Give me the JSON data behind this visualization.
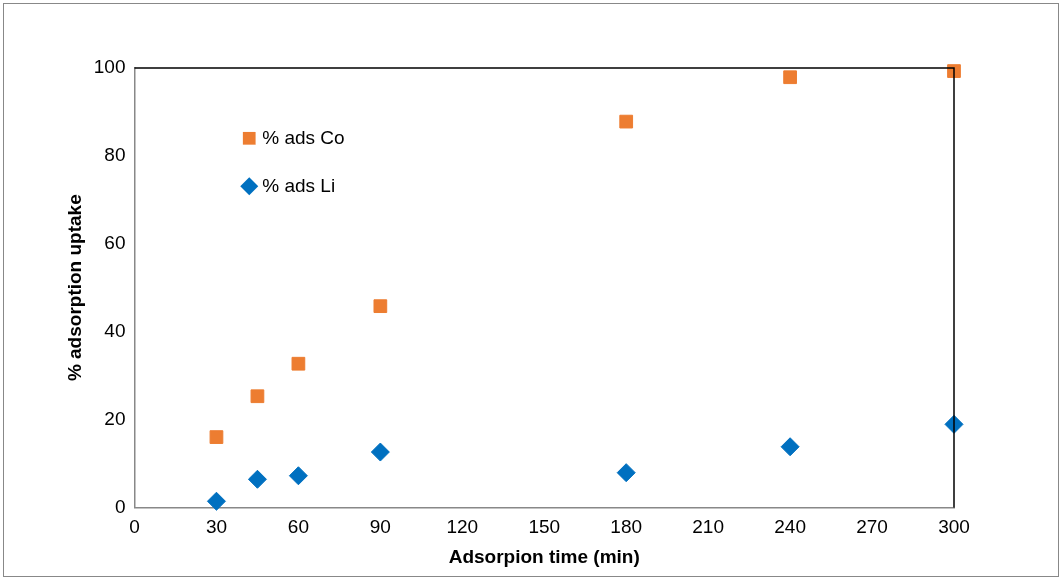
{
  "chart_data": {
    "type": "scatter",
    "xlabel": "Adsorpion time (min)",
    "ylabel": "% adsorption uptake",
    "x": [
      30,
      45,
      60,
      90,
      180,
      240,
      300
    ],
    "series": [
      {
        "name": "% ads Co",
        "color": "#ed7d31",
        "marker": "square",
        "values": [
          16.0,
          25.3,
          32.7,
          45.8,
          87.8,
          97.9,
          99.3
        ]
      },
      {
        "name": "% ads Li",
        "color": "#0070c0",
        "marker": "diamond",
        "values": [
          1.4,
          6.4,
          7.2,
          12.6,
          7.9,
          13.8,
          18.9
        ]
      }
    ],
    "xlim": [
      0,
      300
    ],
    "xticks": [
      0,
      30,
      60,
      90,
      120,
      150,
      180,
      210,
      240,
      270,
      300
    ],
    "ylim": [
      0,
      100
    ],
    "yticks": [
      0,
      20,
      40,
      60,
      80,
      100
    ],
    "grid": false,
    "legend": "top left"
  }
}
